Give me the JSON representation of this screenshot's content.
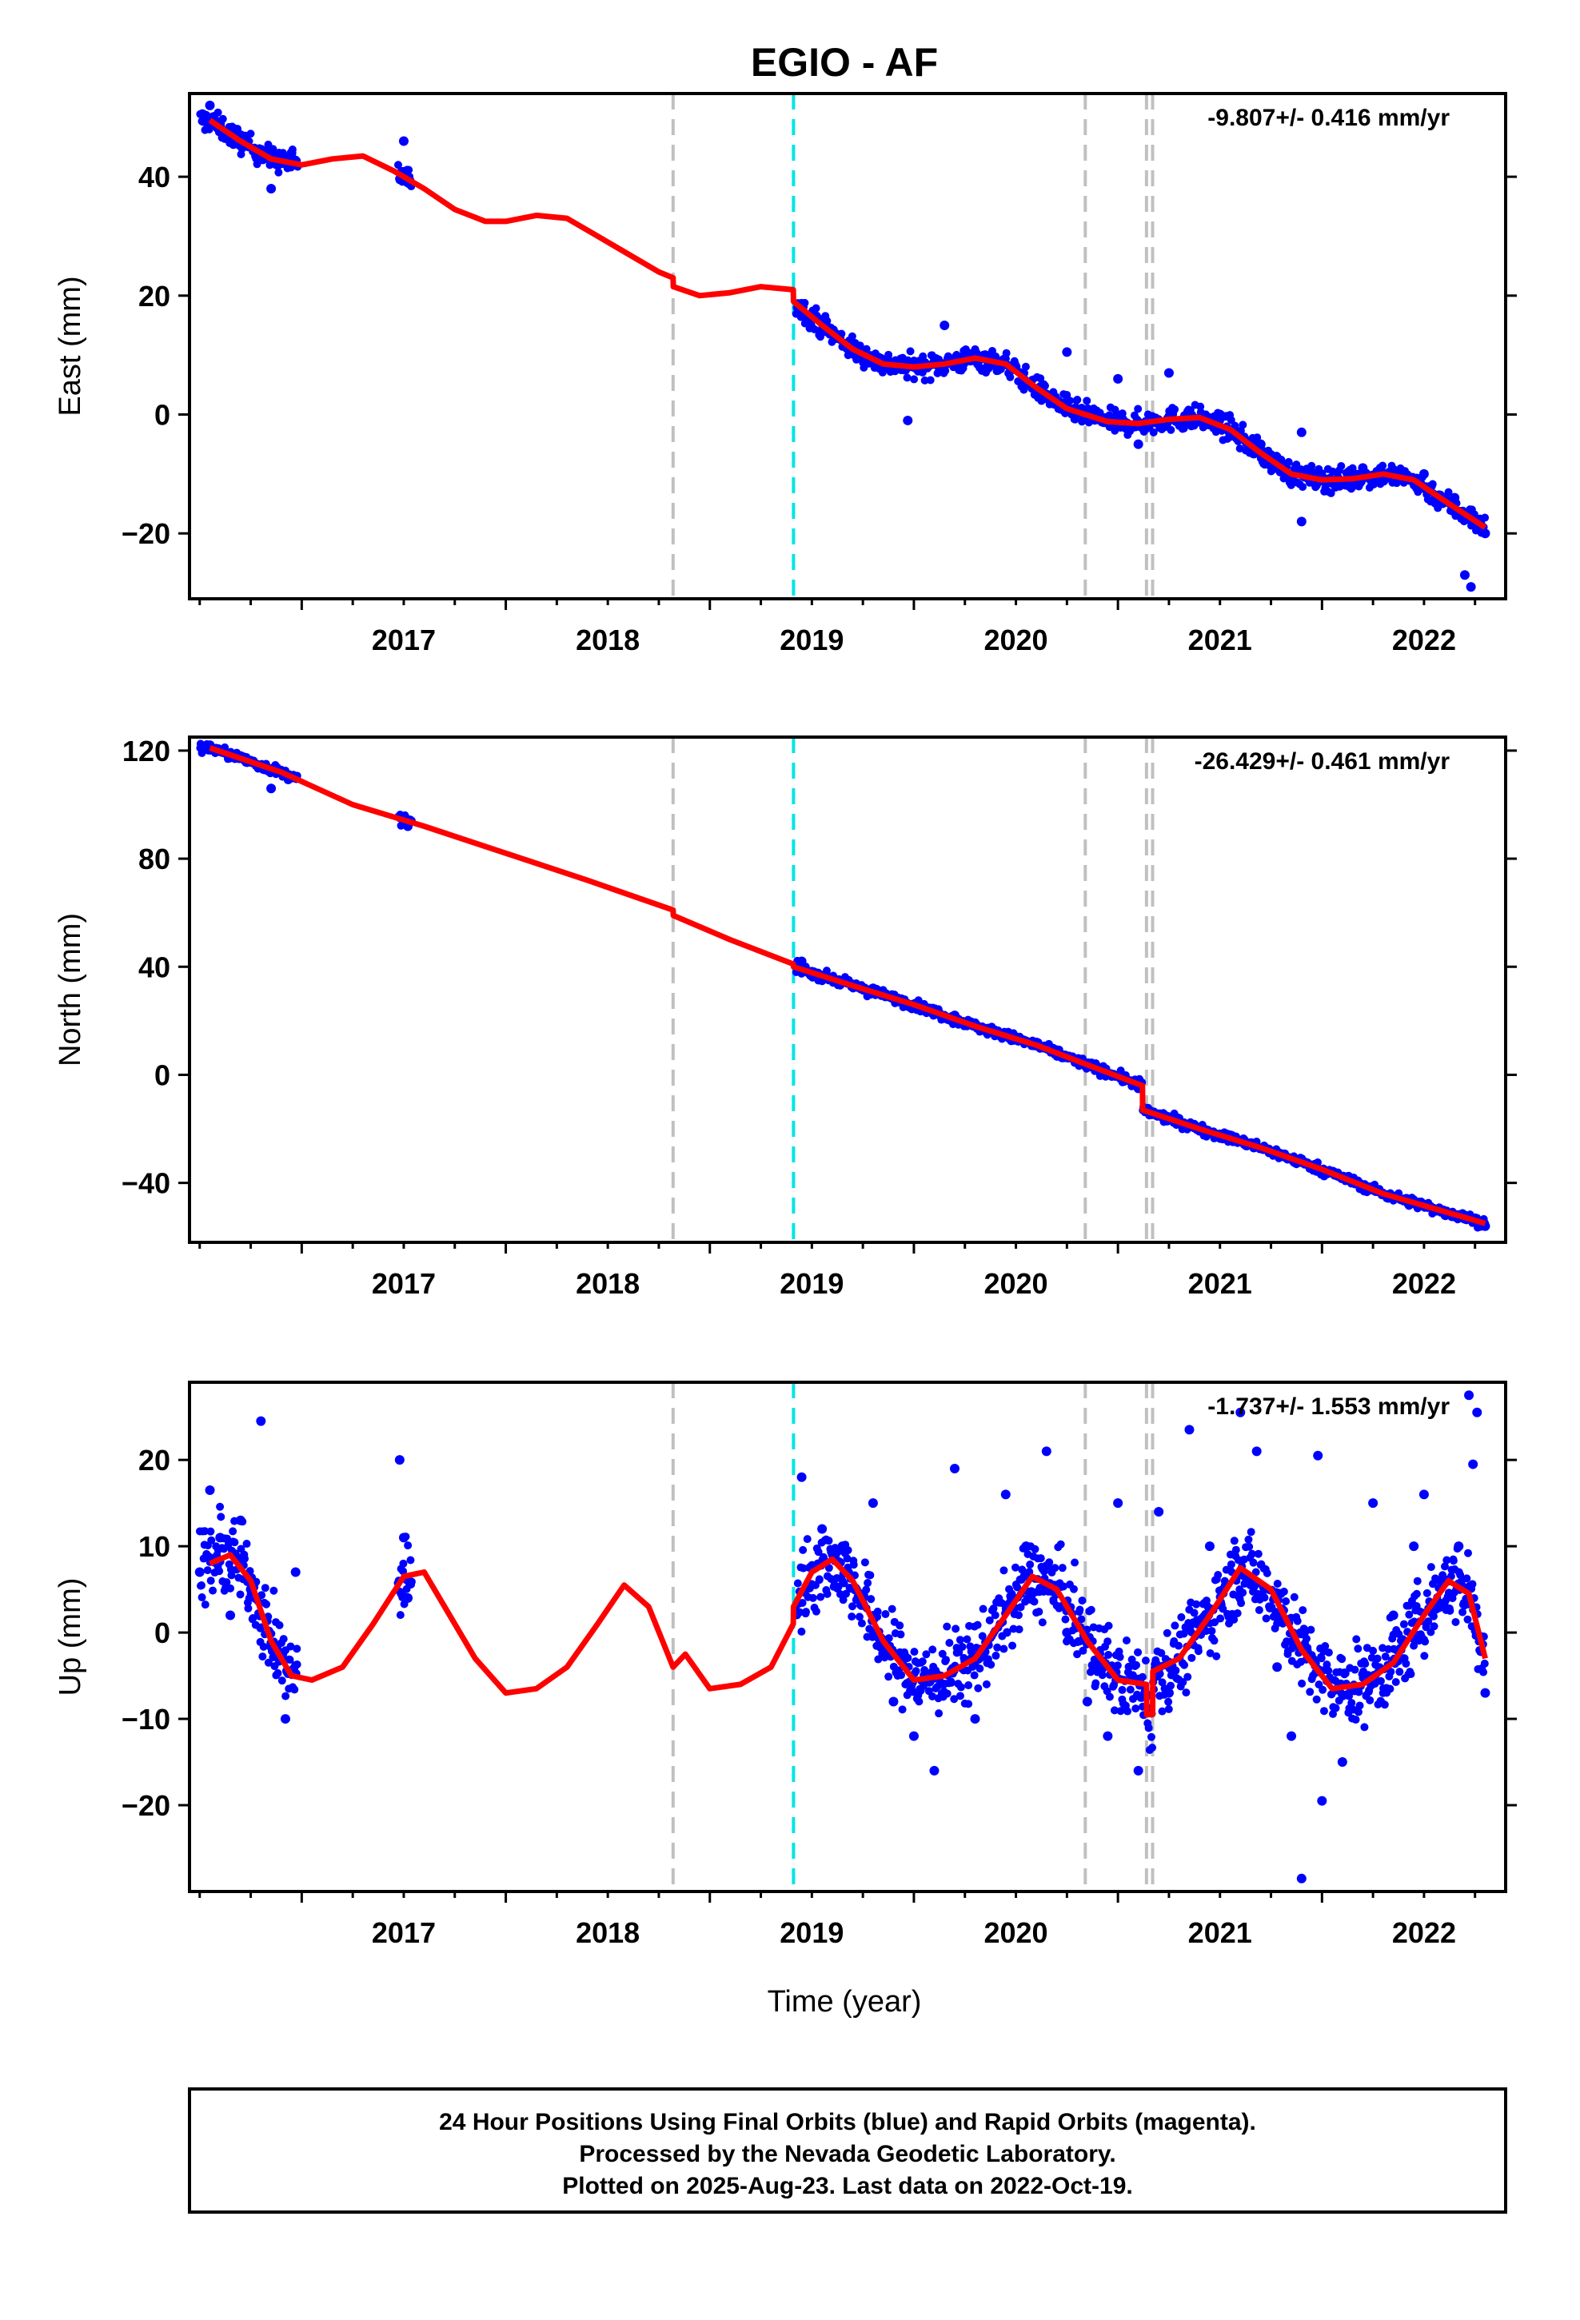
{
  "title": "EGIO - AF",
  "xlabel": "Time (year)",
  "footer": {
    "line1": "24 Hour Positions Using Final Orbits (blue) and Rapid Orbits (magenta).",
    "line2": "Processed by the Nevada Geodetic Laboratory.",
    "line3": "Plotted on 2025-Aug-23. Last data on 2022-Oct-19."
  },
  "colors": {
    "data": "#0000ff",
    "model": "#ff0000",
    "equipment_change": "#c0c0c0",
    "earthquake": "#00e5e5"
  },
  "chart_data": [
    {
      "type": "scatter",
      "name": "east",
      "ylabel": "East (mm)",
      "rate": "-9.807+/- 0.416 mm/yr",
      "xlim": [
        2016.45,
        2022.9
      ],
      "ylim": [
        -31,
        54
      ],
      "xticks": [
        2017,
        2018,
        2019,
        2020,
        2021,
        2022
      ],
      "yticks": [
        -20,
        0,
        20,
        40
      ],
      "vlines": [
        {
          "x": 2018.82,
          "kind": "equipment_change"
        },
        {
          "x": 2019.41,
          "kind": "earthquake"
        },
        {
          "x": 2020.84,
          "kind": "equipment_change"
        },
        {
          "x": 2021.14,
          "kind": "equipment_change"
        },
        {
          "x": 2021.17,
          "kind": "equipment_change"
        }
      ],
      "model": {
        "x": [
          2016.55,
          2016.7,
          2016.85,
          2017.0,
          2017.15,
          2017.3,
          2017.45,
          2017.6,
          2017.75,
          2017.9,
          2018.0,
          2018.15,
          2018.3,
          2018.45,
          2018.6,
          2018.75,
          2018.82,
          2018.821,
          2018.95,
          2019.1,
          2019.25,
          2019.409,
          2019.41,
          2019.55,
          2019.7,
          2019.85,
          2020.0,
          2020.15,
          2020.3,
          2020.45,
          2020.6,
          2020.75,
          2020.84,
          2020.95,
          2021.1,
          2021.25,
          2021.4,
          2021.55,
          2021.7,
          2021.85,
          2022.0,
          2022.15,
          2022.3,
          2022.45,
          2022.6,
          2022.8
        ],
        "y": [
          49.5,
          46,
          43,
          42,
          43,
          43.5,
          41,
          38,
          34.5,
          32.5,
          32.5,
          33.5,
          33,
          30,
          27,
          24,
          23,
          21.5,
          20,
          20.5,
          21.5,
          21,
          19,
          15,
          11,
          8.5,
          8,
          8.5,
          9.5,
          8.5,
          4.5,
          1,
          0,
          -1.2,
          -1.5,
          -0.8,
          -0.5,
          -2.5,
          -6.5,
          -10,
          -11,
          -10.8,
          -10,
          -11,
          -14.5,
          -19
        ]
      },
      "observed": [
        {
          "x": 2016.55,
          "y": 52
        },
        {
          "x": 2016.6,
          "y": 49
        },
        {
          "x": 2016.7,
          "y": 47
        },
        {
          "x": 2016.8,
          "y": 43
        },
        {
          "x": 2016.85,
          "y": 38
        },
        {
          "x": 2016.95,
          "y": 44
        },
        {
          "x": 2017.5,
          "y": 46
        },
        {
          "x": 2017.5,
          "y": 40
        },
        {
          "x": 2019.45,
          "y": 18
        },
        {
          "x": 2019.7,
          "y": 11
        },
        {
          "x": 2019.85,
          "y": 8
        },
        {
          "x": 2019.97,
          "y": -1
        },
        {
          "x": 2020.15,
          "y": 15
        },
        {
          "x": 2020.35,
          "y": 10
        },
        {
          "x": 2020.75,
          "y": 10.5
        },
        {
          "x": 2021.0,
          "y": 6
        },
        {
          "x": 2021.1,
          "y": -5
        },
        {
          "x": 2021.25,
          "y": 7
        },
        {
          "x": 2021.5,
          "y": 0
        },
        {
          "x": 2021.7,
          "y": -5
        },
        {
          "x": 2021.9,
          "y": -18
        },
        {
          "x": 2021.9,
          "y": -3
        },
        {
          "x": 2022.2,
          "y": -9
        },
        {
          "x": 2022.5,
          "y": -10
        },
        {
          "x": 2022.65,
          "y": -14
        },
        {
          "x": 2022.7,
          "y": -27
        },
        {
          "x": 2022.73,
          "y": -29
        },
        {
          "x": 2022.8,
          "y": -20
        }
      ]
    },
    {
      "type": "scatter",
      "name": "north",
      "ylabel": "North (mm)",
      "rate": "-26.429+/- 0.461 mm/yr",
      "xlim": [
        2016.45,
        2022.9
      ],
      "ylim": [
        -62,
        125
      ],
      "xticks": [
        2017,
        2018,
        2019,
        2020,
        2021,
        2022
      ],
      "yticks": [
        -40,
        0,
        40,
        80,
        120
      ],
      "vlines": [
        {
          "x": 2018.82,
          "kind": "equipment_change"
        },
        {
          "x": 2019.41,
          "kind": "earthquake"
        },
        {
          "x": 2020.84,
          "kind": "equipment_change"
        },
        {
          "x": 2021.14,
          "kind": "equipment_change"
        },
        {
          "x": 2021.17,
          "kind": "equipment_change"
        }
      ],
      "model": {
        "x": [
          2016.55,
          2016.9,
          2017.25,
          2017.6,
          2018.0,
          2018.4,
          2018.82,
          2018.821,
          2019.1,
          2019.409,
          2019.41,
          2019.7,
          2020.0,
          2020.3,
          2020.6,
          2020.84,
          2021.12,
          2021.121,
          2021.4,
          2021.7,
          2022.0,
          2022.3,
          2022.8
        ],
        "y": [
          121,
          112,
          100,
          92,
          82,
          72,
          61,
          59,
          50,
          41,
          40,
          33,
          26,
          18,
          11,
          4,
          -4,
          -13,
          -20,
          -27,
          -35,
          -44,
          -55
        ]
      },
      "observed": [
        {
          "x": 2016.55,
          "y": 122
        },
        {
          "x": 2016.7,
          "y": 118
        },
        {
          "x": 2016.85,
          "y": 106
        },
        {
          "x": 2016.95,
          "y": 110
        },
        {
          "x": 2017.5,
          "y": 94
        },
        {
          "x": 2017.52,
          "y": 92
        },
        {
          "x": 2019.45,
          "y": 42
        },
        {
          "x": 2019.8,
          "y": 32
        },
        {
          "x": 2020.2,
          "y": 22
        },
        {
          "x": 2020.6,
          "y": 12
        },
        {
          "x": 2021.1,
          "y": -5
        },
        {
          "x": 2021.5,
          "y": -22
        },
        {
          "x": 2022.0,
          "y": -36
        },
        {
          "x": 2022.5,
          "y": -48
        },
        {
          "x": 2022.8,
          "y": -56
        }
      ]
    },
    {
      "type": "scatter",
      "name": "up",
      "ylabel": "Up (mm)",
      "rate": "-1.737+/- 1.553 mm/yr",
      "xlim": [
        2016.45,
        2022.9
      ],
      "ylim": [
        -30,
        29
      ],
      "xticks": [
        2017,
        2018,
        2019,
        2020,
        2021,
        2022
      ],
      "yticks": [
        -20,
        -10,
        0,
        10,
        20
      ],
      "vlines": [
        {
          "x": 2018.82,
          "kind": "equipment_change"
        },
        {
          "x": 2019.41,
          "kind": "earthquake"
        },
        {
          "x": 2020.84,
          "kind": "equipment_change"
        },
        {
          "x": 2021.14,
          "kind": "equipment_change"
        },
        {
          "x": 2021.17,
          "kind": "equipment_change"
        }
      ],
      "model": {
        "x": [
          2016.55,
          2016.65,
          2016.75,
          2016.85,
          2016.95,
          2017.05,
          2017.2,
          2017.35,
          2017.5,
          2017.6,
          2017.7,
          2017.85,
          2018.0,
          2018.15,
          2018.3,
          2018.45,
          2018.58,
          2018.7,
          2018.82,
          2018.88,
          2019.0,
          2019.15,
          2019.3,
          2019.409,
          2019.41,
          2019.5,
          2019.6,
          2019.7,
          2019.85,
          2020.0,
          2020.15,
          2020.3,
          2020.45,
          2020.58,
          2020.7,
          2020.85,
          2021.0,
          2021.14,
          2021.141,
          2021.17,
          2021.171,
          2021.3,
          2021.45,
          2021.6,
          2021.75,
          2021.9,
          2022.05,
          2022.2,
          2022.35,
          2022.5,
          2022.62,
          2022.72,
          2022.8
        ],
        "y": [
          8,
          9,
          6,
          -1,
          -5,
          -5.5,
          -4,
          1,
          6.5,
          7,
          3,
          -3,
          -7,
          -6.5,
          -4,
          1,
          5.5,
          3,
          -4,
          -2.5,
          -6.5,
          -6,
          -4,
          1,
          3,
          7,
          8.5,
          6,
          -1,
          -5.5,
          -5,
          -3,
          2,
          6.5,
          5,
          -1,
          -5.5,
          -6,
          -9.5,
          -9.5,
          -4.5,
          -3,
          2,
          7.5,
          5,
          -2,
          -6.5,
          -6,
          -3.5,
          2,
          6,
          4.5,
          -3
        ]
      },
      "observed": [
        {
          "x": 2016.5,
          "y": 7
        },
        {
          "x": 2016.55,
          "y": 16.5
        },
        {
          "x": 2016.6,
          "y": 11
        },
        {
          "x": 2016.65,
          "y": 2
        },
        {
          "x": 2016.7,
          "y": 13
        },
        {
          "x": 2016.75,
          "y": 5
        },
        {
          "x": 2016.8,
          "y": 24.5
        },
        {
          "x": 2016.88,
          "y": -2
        },
        {
          "x": 2016.92,
          "y": -10
        },
        {
          "x": 2016.97,
          "y": 7
        },
        {
          "x": 2017.48,
          "y": 20
        },
        {
          "x": 2017.5,
          "y": 11
        },
        {
          "x": 2017.52,
          "y": 4
        },
        {
          "x": 2019.45,
          "y": 18
        },
        {
          "x": 2019.55,
          "y": 12
        },
        {
          "x": 2019.65,
          "y": 10
        },
        {
          "x": 2019.75,
          "y": 4
        },
        {
          "x": 2019.8,
          "y": 15
        },
        {
          "x": 2019.9,
          "y": -8
        },
        {
          "x": 2020.0,
          "y": -12
        },
        {
          "x": 2020.1,
          "y": -16
        },
        {
          "x": 2020.2,
          "y": 19
        },
        {
          "x": 2020.3,
          "y": -10
        },
        {
          "x": 2020.45,
          "y": 16
        },
        {
          "x": 2020.55,
          "y": 10
        },
        {
          "x": 2020.65,
          "y": 21
        },
        {
          "x": 2020.75,
          "y": 0
        },
        {
          "x": 2020.85,
          "y": -8
        },
        {
          "x": 2020.95,
          "y": -12
        },
        {
          "x": 2021.0,
          "y": 15
        },
        {
          "x": 2021.1,
          "y": -16
        },
        {
          "x": 2021.2,
          "y": 14
        },
        {
          "x": 2021.25,
          "y": -7
        },
        {
          "x": 2021.35,
          "y": 23.5
        },
        {
          "x": 2021.45,
          "y": 10
        },
        {
          "x": 2021.55,
          "y": 2
        },
        {
          "x": 2021.6,
          "y": 25.5
        },
        {
          "x": 2021.68,
          "y": 21
        },
        {
          "x": 2021.78,
          "y": -4
        },
        {
          "x": 2021.85,
          "y": -12
        },
        {
          "x": 2021.9,
          "y": -28.5
        },
        {
          "x": 2021.98,
          "y": 20.5
        },
        {
          "x": 2022.0,
          "y": -19.5
        },
        {
          "x": 2022.1,
          "y": -15
        },
        {
          "x": 2022.25,
          "y": 15
        },
        {
          "x": 2022.35,
          "y": 2
        },
        {
          "x": 2022.45,
          "y": 10
        },
        {
          "x": 2022.5,
          "y": 16
        },
        {
          "x": 2022.6,
          "y": 3
        },
        {
          "x": 2022.67,
          "y": 10
        },
        {
          "x": 2022.72,
          "y": 27.5
        },
        {
          "x": 2022.74,
          "y": 19.5
        },
        {
          "x": 2022.76,
          "y": 25.5
        },
        {
          "x": 2022.8,
          "y": -7
        }
      ]
    }
  ]
}
